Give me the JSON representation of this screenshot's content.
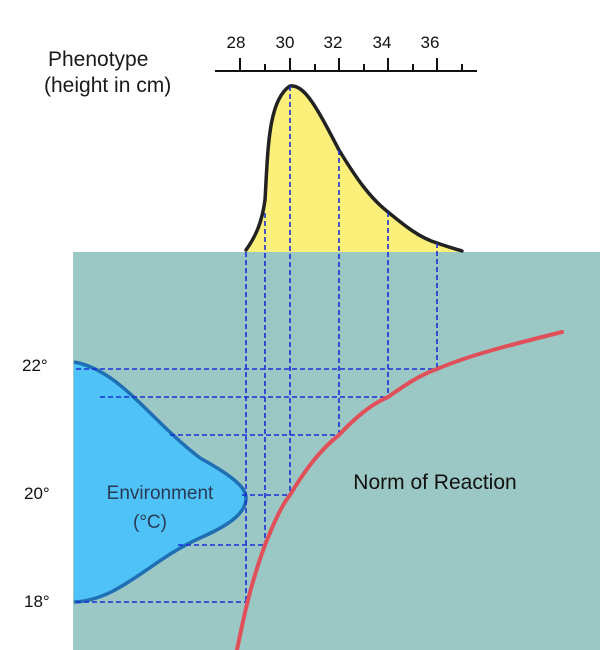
{
  "title": {
    "line1": "Phenotype",
    "line2": "(height in cm)"
  },
  "phenotype_axis": {
    "ticks": [
      "28",
      "30",
      "32",
      "34",
      "36"
    ]
  },
  "environment_axis": {
    "ticks": [
      "22°",
      "20°",
      "18°"
    ],
    "label_line1": "Environment",
    "label_line2": "(°C)"
  },
  "norm_label": "Norm of Reaction",
  "colors": {
    "background_panel": "#9bc8c4",
    "phenotype_fill": "#fdf07a",
    "phenotype_stroke": "#222222",
    "environment_fill": "#4fc3f7",
    "environment_stroke": "#1f6fb5",
    "norm_curve": "#e0505a",
    "guide_lines": "#1a2fd6"
  },
  "chart_data": {
    "type": "diagram",
    "phenotype_distribution": {
      "unit": "cm",
      "peak": 30,
      "shape": "right-skewed"
    },
    "environment_distribution": {
      "unit": "°C",
      "peak": 20,
      "range": [
        18,
        22
      ]
    },
    "norm_of_reaction_mapping": [
      {
        "temperature": 18,
        "height": 28.5
      },
      {
        "temperature": 19,
        "height": 29.2
      },
      {
        "temperature": 20,
        "height": 30.0
      },
      {
        "temperature": 21,
        "height": 32.0
      },
      {
        "temperature": 21.5,
        "height": 34.0
      },
      {
        "temperature": 22,
        "height": 36.0
      }
    ]
  }
}
